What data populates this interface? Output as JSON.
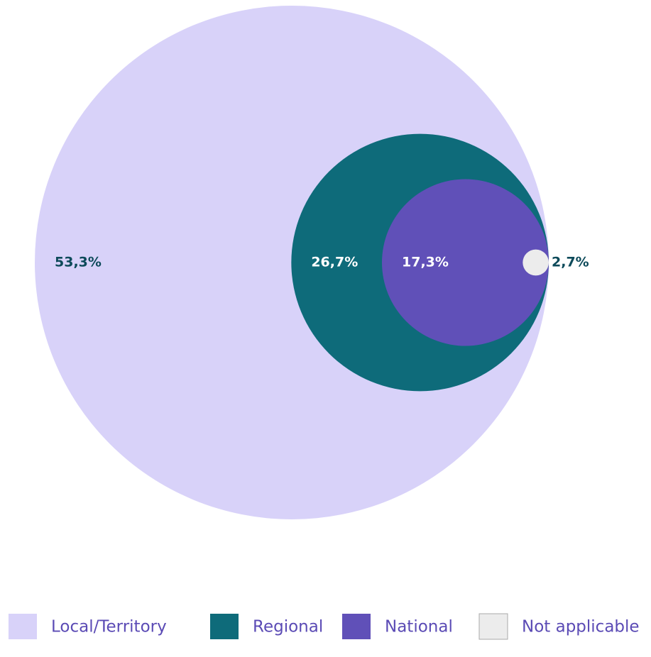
{
  "chart_data": {
    "type": "nested_circles",
    "categories": [
      "Local/Territory",
      "Regional",
      "National",
      "Not applicable"
    ],
    "values": [
      53.3,
      26.7,
      17.3,
      2.7
    ],
    "value_labels": [
      "53,3%",
      "26,7%",
      "17,3%",
      "2,7%"
    ],
    "colors": [
      "#d8d2f9",
      "#0e6b7a",
      "#6050b8",
      "#ececec"
    ],
    "legend": "bottom"
  }
}
